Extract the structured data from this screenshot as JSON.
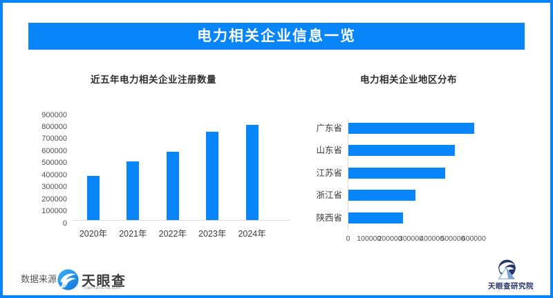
{
  "page": {
    "title_banner": "电力相关企业信息一览"
  },
  "colors": {
    "accent": "#0885F8",
    "banner_text": "#FFFFFF",
    "axis_line": "#DCDCDC",
    "tick_text": "#4F4F4F",
    "title_text": "#2E2E2E",
    "footer_navy": "#24356B"
  },
  "chart_data": [
    {
      "type": "bar",
      "title": "近五年电力相关企业注册数量",
      "categories": [
        "2020年",
        "2021年",
        "2022年",
        "2023年",
        "2024年"
      ],
      "values": [
        365000,
        490000,
        565000,
        735000,
        790000
      ],
      "xlabel": "",
      "ylabel": "",
      "ylim": [
        0,
        900000
      ],
      "ytick_step": 100000,
      "grid": false,
      "legend": false,
      "bar_color": "#0885F8"
    },
    {
      "type": "bar",
      "orientation": "horizontal",
      "title": "电力相关企业地区分布",
      "categories": [
        "广东省",
        "山东省",
        "江苏省",
        "浙江省",
        "陕西省"
      ],
      "values": [
        600000,
        508000,
        463000,
        321000,
        262000
      ],
      "xlabel": "",
      "ylabel": "",
      "xlim": [
        0,
        600000
      ],
      "xtick_step": 100000,
      "grid": false,
      "legend": false,
      "bar_color": "#0885F8"
    }
  ],
  "footer": {
    "source_label": "数据来源：",
    "source_logo": {
      "name": "天眼查",
      "domain": "TianYanCha.com"
    },
    "right_logo": {
      "name": "天眼查研究院"
    }
  }
}
